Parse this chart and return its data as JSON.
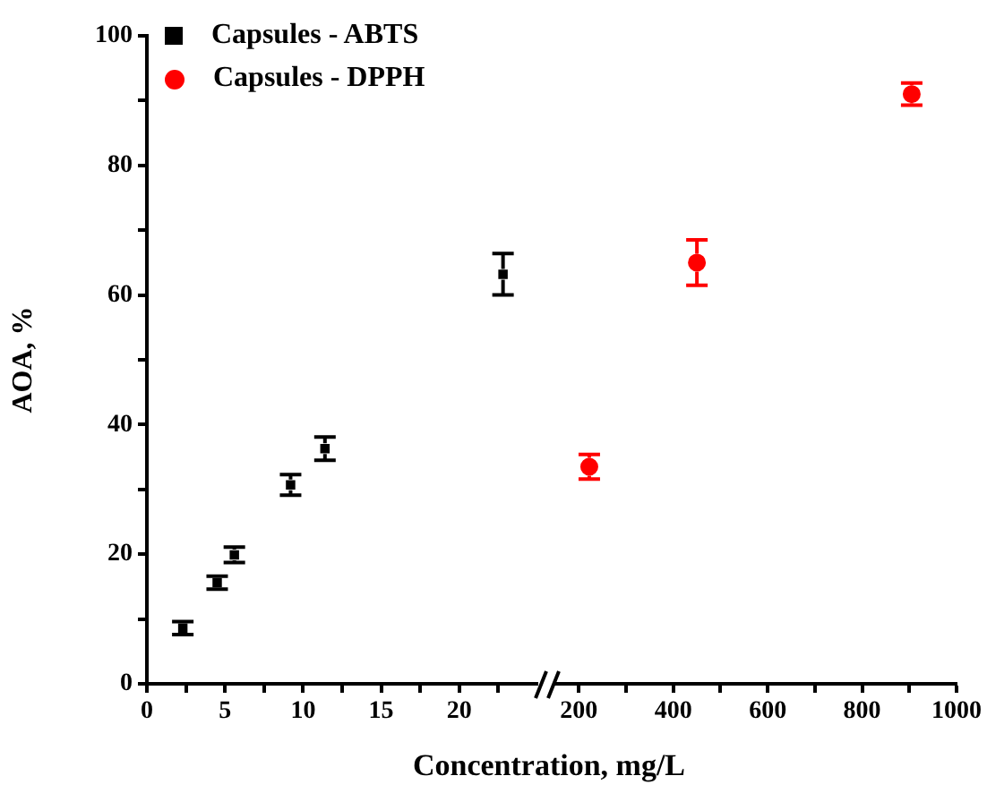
{
  "chart_data": [
    {
      "type": "scatter",
      "xlabel": "Concentration, mg/L",
      "ylabel": "AOA, %",
      "xlim": [
        0,
        25
      ],
      "xticks": [
        0,
        {
          "value": 2.5,
          "label": null
        },
        5,
        {
          "value": 7.5,
          "label": null
        },
        10,
        {
          "value": 12.5,
          "label": null
        },
        15,
        {
          "value": 17.5,
          "label": null
        },
        20,
        {
          "value": 22.5,
          "label": null
        }
      ],
      "ylim": [
        0,
        100
      ],
      "yticks": [
        0,
        {
          "value": 10,
          "label": null
        },
        20,
        {
          "value": 30,
          "label": null
        },
        40,
        {
          "value": 50,
          "label": null
        },
        60,
        {
          "value": 70,
          "label": null
        },
        80,
        {
          "value": 90,
          "label": null
        },
        100
      ],
      "grid": false,
      "legend": "top left",
      "marker": "square",
      "series": [
        {
          "name": "Capsules - ABTS",
          "color": "#000000",
          "x": [
            2.3,
            4.5,
            5.6,
            9.2,
            11.4,
            22.8
          ],
          "values": [
            8.6,
            15.6,
            19.9,
            30.7,
            36.3,
            63.2
          ],
          "errors": [
            1.0,
            1.0,
            1.2,
            1.6,
            1.8,
            3.2
          ]
        }
      ]
    },
    {
      "type": "scatter",
      "xlim": [
        150,
        1000
      ],
      "xticks": [
        200,
        {
          "value": 300,
          "label": null
        },
        400,
        {
          "value": 500,
          "label": null
        },
        600,
        {
          "value": 700,
          "label": null
        },
        800,
        {
          "value": 900,
          "label": null
        },
        1000
      ],
      "ylim": [
        0,
        100
      ],
      "tick_labels": "x",
      "grid": false,
      "legend": "top left",
      "marker": "circle",
      "series": [
        {
          "name": "Capsules - DPPH",
          "color": "#ff0000",
          "x": [
            222,
            450,
            905
          ],
          "values": [
            33.5,
            65.0,
            91.0
          ],
          "errors": [
            1.9,
            3.5,
            1.7
          ]
        }
      ]
    }
  ]
}
